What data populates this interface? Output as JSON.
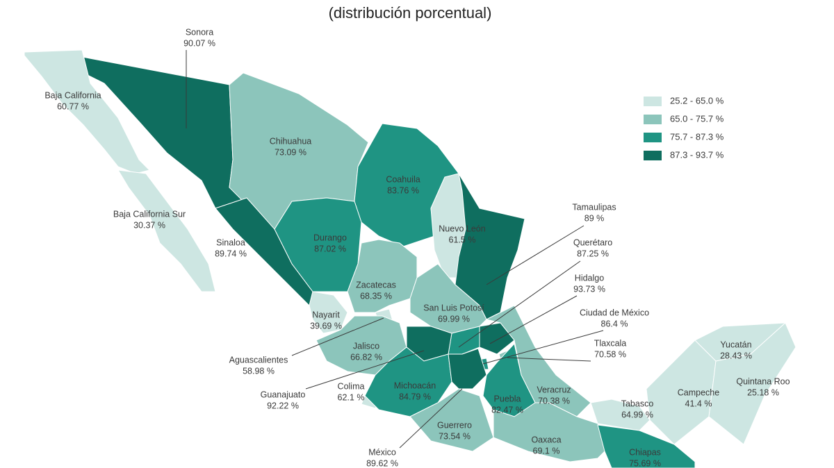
{
  "title": "(distribución porcentual)",
  "legend": [
    {
      "label": "25.2 - 65.0 %",
      "color": "#cde6e2"
    },
    {
      "label": "65.0 - 75.7 %",
      "color": "#8cc5bb"
    },
    {
      "label": "75.7 - 87.3 %",
      "color": "#1f9483"
    },
    {
      "label": "87.3 - 93.7 %",
      "color": "#0f6e5f"
    }
  ],
  "states": [
    {
      "name": "Sonora",
      "value": "90.07 %",
      "color": "#0f6e5f"
    },
    {
      "name": "Baja California",
      "value": "60.77 %",
      "color": "#cde6e2"
    },
    {
      "name": "Baja California Sur",
      "value": "30.37 %",
      "color": "#cde6e2"
    },
    {
      "name": "Chihuahua",
      "value": "73.09 %",
      "color": "#8cc5bb"
    },
    {
      "name": "Coahuila",
      "value": "83.76 %",
      "color": "#1f9483"
    },
    {
      "name": "Nuevo León",
      "value": "61.5 %",
      "color": "#cde6e2"
    },
    {
      "name": "Tamaulipas",
      "value": "89 %",
      "color": "#0f6e5f"
    },
    {
      "name": "Sinaloa",
      "value": "89.74 %",
      "color": "#0f6e5f"
    },
    {
      "name": "Durango",
      "value": "87.02 %",
      "color": "#1f9483"
    },
    {
      "name": "Zacatecas",
      "value": "68.35 %",
      "color": "#8cc5bb"
    },
    {
      "name": "Nayarit",
      "value": "39.69 %",
      "color": "#cde6e2"
    },
    {
      "name": "San Luis Potosí",
      "value": "69.99 %",
      "color": "#8cc5bb"
    },
    {
      "name": "Querétaro",
      "value": "87.25 %",
      "color": "#1f9483"
    },
    {
      "name": "Hidalgo",
      "value": "93.73 %",
      "color": "#0f6e5f"
    },
    {
      "name": "Ciudad de México",
      "value": "86.4 %",
      "color": "#1f9483"
    },
    {
      "name": "Tlaxcala",
      "value": "70.58 %",
      "color": "#8cc5bb"
    },
    {
      "name": "Aguascalientes",
      "value": "58.98 %",
      "color": "#cde6e2"
    },
    {
      "name": "Jalisco",
      "value": "66.82 %",
      "color": "#8cc5bb"
    },
    {
      "name": "Guanajuato",
      "value": "92.22 %",
      "color": "#0f6e5f"
    },
    {
      "name": "Colima",
      "value": "62.1 %",
      "color": "#cde6e2"
    },
    {
      "name": "Michoacán",
      "value": "84.79 %",
      "color": "#1f9483"
    },
    {
      "name": "Puebla",
      "value": "82.47 %",
      "color": "#1f9483"
    },
    {
      "name": "Veracruz",
      "value": "70.38 %",
      "color": "#8cc5bb"
    },
    {
      "name": "México",
      "value": "89.62 %",
      "color": "#0f6e5f"
    },
    {
      "name": "Guerrero",
      "value": "73.54 %",
      "color": "#8cc5bb"
    },
    {
      "name": "Oaxaca",
      "value": "69.1 %",
      "color": "#8cc5bb"
    },
    {
      "name": "Tabasco",
      "value": "64.99 %",
      "color": "#cde6e2"
    },
    {
      "name": "Chiapas",
      "value": "75.69 %",
      "color": "#1f9483"
    },
    {
      "name": "Campeche",
      "value": "41.4 %",
      "color": "#cde6e2"
    },
    {
      "name": "Yucatán",
      "value": "28.43 %",
      "color": "#cde6e2"
    },
    {
      "name": "Quintana Roo",
      "value": "25.18 %",
      "color": "#cde6e2"
    }
  ]
}
